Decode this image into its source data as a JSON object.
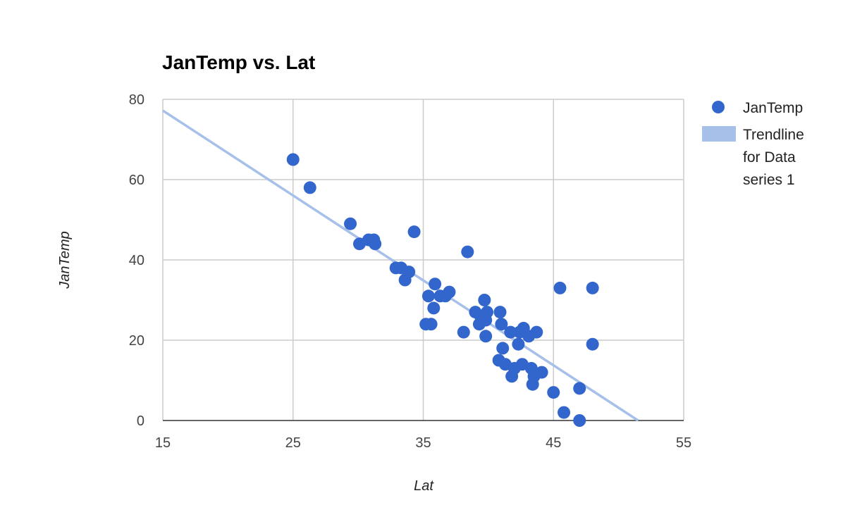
{
  "chart_data": {
    "type": "scatter",
    "title": "JanTemp vs. Lat",
    "xlabel": "Lat",
    "ylabel": "JanTemp",
    "xlim": [
      15,
      55
    ],
    "ylim": [
      0,
      80
    ],
    "x_ticks": [
      "15",
      "25",
      "35",
      "45",
      "55"
    ],
    "y_ticks": [
      "0",
      "20",
      "40",
      "60",
      "80"
    ],
    "grid": true,
    "legend_position": "right",
    "series": [
      {
        "name": "JanTemp",
        "color": "#3366cc",
        "points": [
          [
            25.0,
            65
          ],
          [
            26.3,
            58
          ],
          [
            29.4,
            49
          ],
          [
            30.1,
            44
          ],
          [
            30.8,
            45
          ],
          [
            31.2,
            45
          ],
          [
            31.3,
            44
          ],
          [
            32.9,
            38
          ],
          [
            33.3,
            38
          ],
          [
            33.6,
            35
          ],
          [
            33.9,
            37
          ],
          [
            34.3,
            47
          ],
          [
            35.2,
            24
          ],
          [
            35.4,
            31
          ],
          [
            35.6,
            24
          ],
          [
            35.8,
            28
          ],
          [
            35.9,
            34
          ],
          [
            36.3,
            31
          ],
          [
            36.7,
            31
          ],
          [
            37.0,
            32
          ],
          [
            38.1,
            22
          ],
          [
            38.4,
            42
          ],
          [
            39.0,
            27
          ],
          [
            39.3,
            24
          ],
          [
            39.4,
            26
          ],
          [
            39.7,
            30
          ],
          [
            39.8,
            21
          ],
          [
            39.8,
            25
          ],
          [
            39.9,
            27
          ],
          [
            40.8,
            15
          ],
          [
            40.9,
            27
          ],
          [
            41.0,
            24
          ],
          [
            41.1,
            18
          ],
          [
            41.3,
            14
          ],
          [
            41.7,
            22
          ],
          [
            41.8,
            11
          ],
          [
            42.0,
            13
          ],
          [
            42.3,
            19
          ],
          [
            42.4,
            22
          ],
          [
            42.6,
            14
          ],
          [
            42.7,
            23
          ],
          [
            43.1,
            21
          ],
          [
            43.3,
            13
          ],
          [
            43.4,
            9
          ],
          [
            43.5,
            11
          ],
          [
            43.7,
            22
          ],
          [
            44.1,
            12
          ],
          [
            45.0,
            7
          ],
          [
            45.5,
            33
          ],
          [
            45.8,
            2
          ],
          [
            47.0,
            8
          ],
          [
            47.0,
            0
          ],
          [
            48.0,
            33
          ],
          [
            48.0,
            19
          ]
        ]
      },
      {
        "name": "Trendline for Data series 1",
        "type": "line",
        "color": "#a6c0ea",
        "line": [
          [
            15,
            77.2
          ],
          [
            51.5,
            0
          ]
        ]
      }
    ]
  }
}
